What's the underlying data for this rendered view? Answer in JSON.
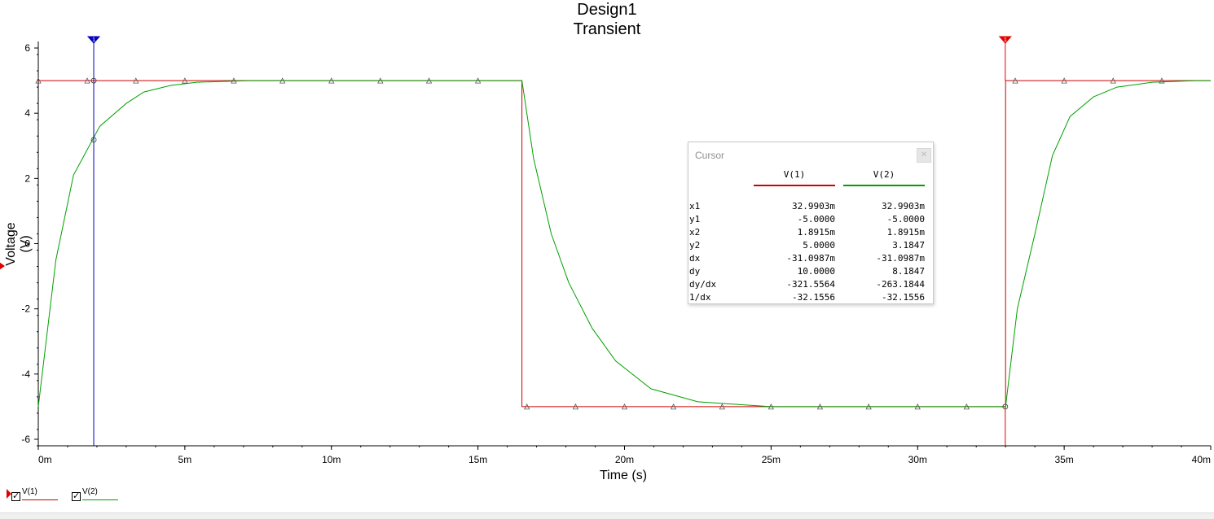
{
  "chart_data": {
    "type": "line",
    "title": "Design1",
    "subtitle": "Transient",
    "xlabel": "Time (s)",
    "ylabel": "Voltage (V)",
    "xlim": [
      0,
      0.04
    ],
    "ylim": [
      -6.2,
      6.2
    ],
    "x_ticks": [
      0,
      0.005,
      0.01,
      0.015,
      0.02,
      0.025,
      0.03,
      0.035,
      0.04
    ],
    "x_tick_labels": [
      "0m",
      "5m",
      "10m",
      "15m",
      "20m",
      "25m",
      "30m",
      "35m",
      "40m"
    ],
    "y_ticks": [
      6,
      4,
      2,
      0,
      -2,
      -4,
      -6
    ],
    "y_tick_labels": [
      "6",
      "4",
      "2",
      "0",
      "-2",
      "-4",
      "-6"
    ],
    "grid": false,
    "legend_position": "bottom-left",
    "series": [
      {
        "name": "V(1)",
        "color": "#d00000",
        "x": [
          0,
          0.0165,
          0.0165,
          0.033,
          0.033,
          0.04
        ],
        "y": [
          5,
          5,
          -5,
          -5,
          5,
          5
        ],
        "marker_x": [
          0,
          0.00167,
          0.00333,
          0.005,
          0.00667,
          0.00833,
          0.01,
          0.01167,
          0.01333,
          0.015,
          0.01667,
          0.01833,
          0.02,
          0.02167,
          0.02333,
          0.025,
          0.02667,
          0.02833,
          0.03,
          0.03167,
          0.03333,
          0.035,
          0.03667,
          0.03833
        ]
      },
      {
        "name": "V(2)",
        "color": "#00a000",
        "x": [
          0,
          0.0006,
          0.0012,
          0.0021,
          0.003,
          0.0036,
          0.0045,
          0.0054,
          0.0072,
          0.0165,
          0.0169,
          0.0175,
          0.0181,
          0.0189,
          0.0197,
          0.0209,
          0.0225,
          0.025,
          0.033,
          0.0334,
          0.034,
          0.0346,
          0.0352,
          0.036,
          0.0368,
          0.038,
          0.0395,
          0.04
        ],
        "y": [
          -5,
          -0.5,
          2.1,
          3.6,
          4.3,
          4.65,
          4.85,
          4.95,
          5.0,
          5.0,
          2.6,
          0.3,
          -1.2,
          -2.6,
          -3.6,
          -4.45,
          -4.85,
          -5.0,
          -5.0,
          -2.0,
          0.3,
          2.7,
          3.9,
          4.5,
          4.8,
          4.95,
          5.0,
          5.0
        ]
      }
    ],
    "cursors": [
      {
        "name": "cursor-1",
        "x": 0.0018915,
        "color": "#0000c0",
        "label": "1"
      },
      {
        "name": "cursor-2",
        "x": 0.0329903,
        "color": "#e00000",
        "label": "1"
      }
    ]
  },
  "cursor_panel": {
    "title": "Cursor",
    "columns": [
      "V(1)",
      "V(2)"
    ],
    "rows": [
      {
        "label": "x1",
        "v1": "32.9903m",
        "v2": "32.9903m"
      },
      {
        "label": "y1",
        "v1": "-5.0000",
        "v2": "-5.0000"
      },
      {
        "label": "x2",
        "v1": "1.8915m",
        "v2": "1.8915m"
      },
      {
        "label": "y2",
        "v1": "5.0000",
        "v2": "3.1847"
      },
      {
        "label": "dx",
        "v1": "-31.0987m",
        "v2": "-31.0987m"
      },
      {
        "label": "dy",
        "v1": "10.0000",
        "v2": "8.1847"
      },
      {
        "label": "dy/dx",
        "v1": "-321.5564",
        "v2": "-263.1844"
      },
      {
        "label": "1/dx",
        "v1": "-32.1556",
        "v2": "-32.1556"
      }
    ]
  },
  "legend": {
    "items": [
      {
        "label": "V(1)",
        "color": "#d00000",
        "checked": true
      },
      {
        "label": "V(2)",
        "color": "#00a000",
        "checked": true
      }
    ]
  }
}
